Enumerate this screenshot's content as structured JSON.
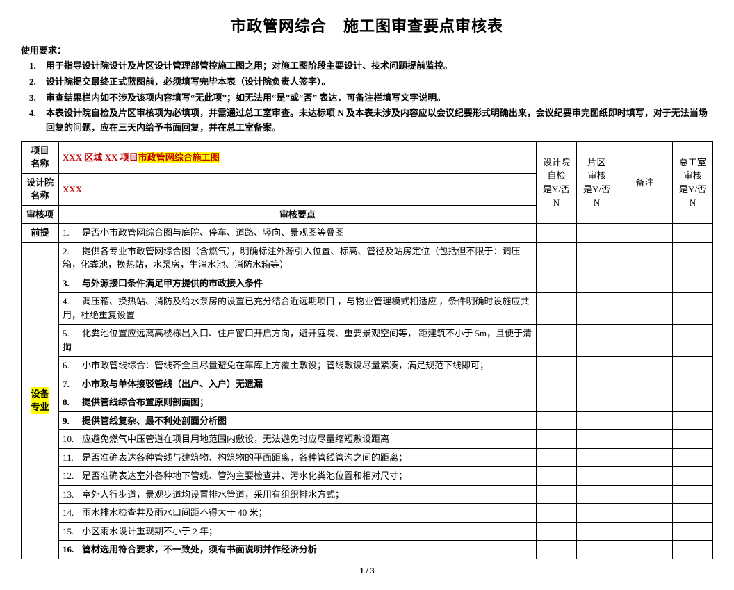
{
  "title_part1": "市政管网综合",
  "title_part2": "施工图审查要点审核表",
  "usage_header": "使用要求：",
  "usage_items": [
    "用于指导设计院设计及片区设计管理部管控施工图之用；对施工图阶段主要设计、技术问题提前监控。",
    "设计院提交最终正式蓝图前，必须填写完毕本表（设计院负责人签字）。",
    "审查结果栏内如不涉及该项内容填写“无此项”；如无法用“是”或“否”  表达，可备注栏填写文字说明。",
    "本表设计院自检及片区审核项为必填项，并需通过总工室审查。未达标项 N 及本表未涉及内容应以会议纪要形式明确出来，会议纪要审完图纸即时填写，对于无法当场回复的问题，应在三天内给予书面回复，并在总工室备案。"
  ],
  "header": {
    "proj_name_label": "项目\n名称",
    "proj_name_prefix": "XXX 区域 XX 项目",
    "proj_name_hl": "市政管网综合施工图",
    "design_inst_label": "设计院\n名称",
    "design_inst_value": "XXX",
    "review_item_label": "审核项",
    "review_point_label": "审核要点",
    "col_selfcheck": "设计院\n自检\n是Y/否\nN",
    "col_district": "片区\n审核\n是Y/否\nN",
    "col_remark": "备注",
    "col_final": "总工室\n审核\n是Y/否\nN"
  },
  "section_prereq": "前提",
  "section_equip": "设备\n专业",
  "rows": [
    {
      "n": "1.",
      "t": "是否小市政管网综合图与庭院、停车、道路、竖向、景观图等叠图",
      "b": false
    },
    {
      "n": "2.",
      "t": "提供各专业市政管网综合图（含燃气），明确标注外源引入位置、标高、管径及站房定位（包括但不限于：调压箱，化粪池，换热站，水泵房，生消水池、消防水箱等）",
      "b": false
    },
    {
      "n": "3.",
      "t": "与外源接口条件满足甲方提供的市政接入条件",
      "b": true
    },
    {
      "n": "4.",
      "t": "调压箱、换热站、消防及给水泵房的设置已充分结合近远期项目 ，与物业管理模式相适应 ，条件明确时设施应共用，杜绝重复设置",
      "b": false
    },
    {
      "n": "5.",
      "t": "化粪池位置应远离高楼栋出入口、住户窗口开启方向，避开庭院、重要景观空间等，  距建筑不小于 5m，且便于清掏",
      "b": false
    },
    {
      "n": "6.",
      "t": "小市政管线综合：管线齐全且尽量避免在车库上方覆土敷设；管线敷设尽量紧凑，满足规范下线即可；",
      "b": false
    },
    {
      "n": "7.",
      "t": "小市政与单体接驳管线（出户、入户）无遗漏",
      "b": true
    },
    {
      "n": "8.",
      "t": "提供管线综合布置原则剖面图；",
      "b": true
    },
    {
      "n": "9.",
      "t": "提供管线复杂、最不利处剖面分析图",
      "b": true
    },
    {
      "n": "10.",
      "t": "应避免燃气中压管道在项目用地范围内敷设，无法避免时应尽量缩短敷设距离",
      "b": false
    },
    {
      "n": "11.",
      "t": "是否准确表达各种管线与建筑物、构筑物的平面距离，各种管线管沟之间的距离；",
      "b": false
    },
    {
      "n": "12.",
      "t": "是否准确表达室外各种地下管线、管沟主要检查井、污水化粪池位置和相对尺寸；",
      "b": false
    },
    {
      "n": "13.",
      "t": "室外人行步道，景观步道均设置排水管道，采用有组织排水方式；",
      "b": false
    },
    {
      "n": "14.",
      "t": "雨水排水检查井及雨水口间距不得大于  40 米；",
      "b": false
    },
    {
      "n": "15.",
      "t": "小区雨水设计重现期不小于  2 年；",
      "b": false
    },
    {
      "n": "16.",
      "t": "管材选用符合要求，不一致处，须有书面说明并作经济分析",
      "b": true
    }
  ],
  "page_footer": "1 / 3"
}
